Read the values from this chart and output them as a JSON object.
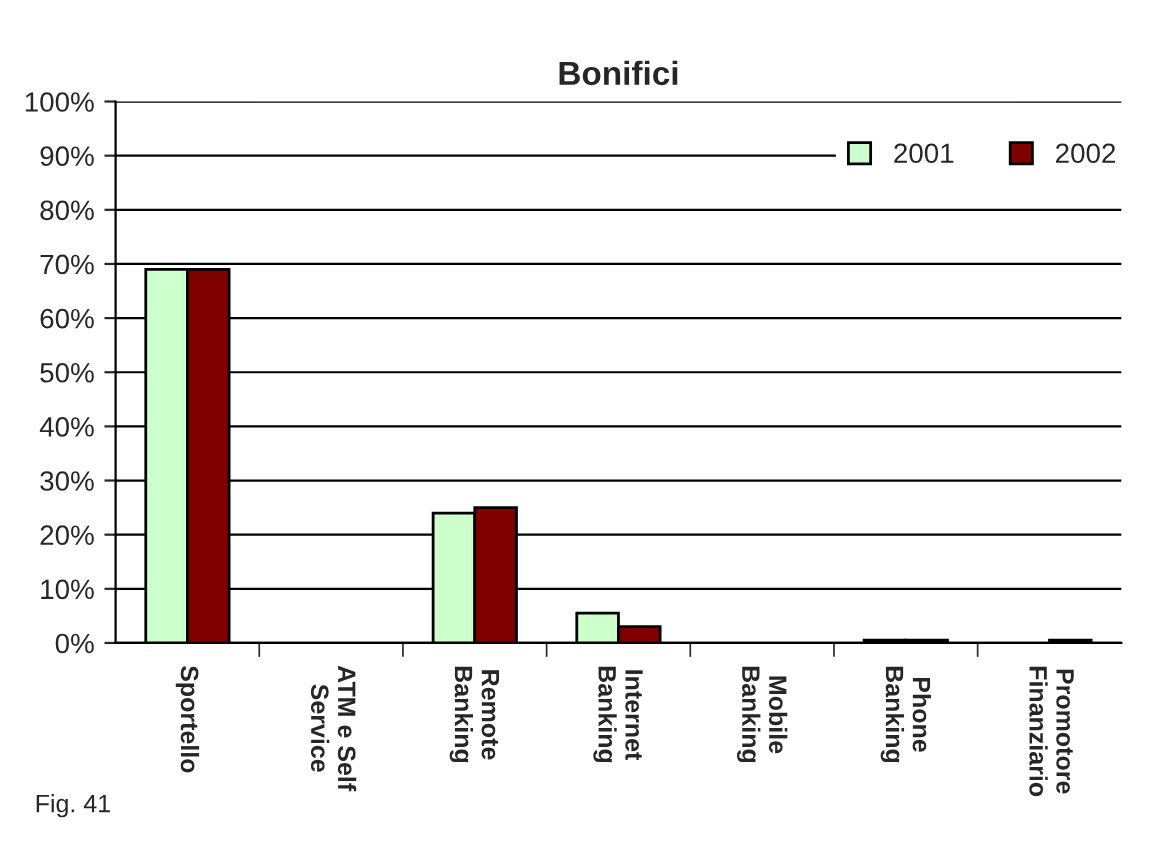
{
  "chart_data": {
    "type": "bar",
    "title": "Bonifici",
    "categories": [
      "Sportello",
      "ATM e Self\nService",
      "Remote\nBanking",
      "Internet\nBanking",
      "Mobile\nBanking",
      "Phone\nBanking",
      "Promotore\nFinanziario"
    ],
    "series": [
      {
        "name": "2001",
        "color": "#ccffcc",
        "values": [
          69,
          null,
          24,
          5.5,
          null,
          0.5,
          null
        ]
      },
      {
        "name": "2002",
        "color": "#800000",
        "values": [
          69,
          null,
          25,
          3,
          null,
          0.5,
          0.5
        ]
      }
    ],
    "ylim": [
      0,
      100
    ],
    "yticks": [
      {
        "value": 0,
        "label": "0%"
      },
      {
        "value": 10,
        "label": "10%"
      },
      {
        "value": 20,
        "label": "20%"
      },
      {
        "value": 30,
        "label": "30%"
      },
      {
        "value": 40,
        "label": "40%"
      },
      {
        "value": 50,
        "label": "50%"
      },
      {
        "value": 60,
        "label": "60%"
      },
      {
        "value": 70,
        "label": "70%"
      },
      {
        "value": 80,
        "label": "80%"
      },
      {
        "value": 90,
        "label": "90%"
      },
      {
        "value": 100,
        "label": "100%"
      }
    ],
    "grid": "y",
    "legend": "top right",
    "annotations": [
      "Fig. 41"
    ]
  }
}
